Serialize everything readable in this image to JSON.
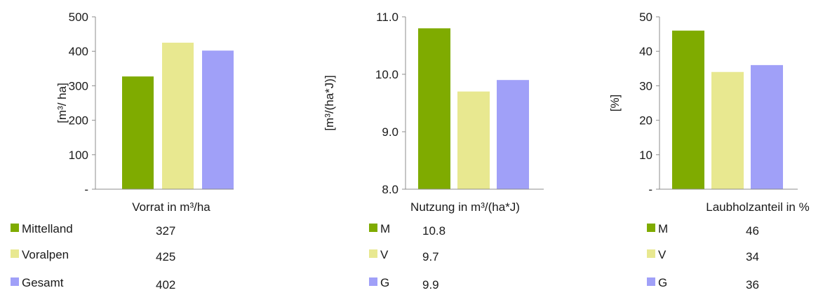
{
  "chart_data": [
    {
      "type": "bar",
      "title": "",
      "xlabel": "Vorrat in m³/ha",
      "ylabel": "[m³/ ha]",
      "ylim": [
        0,
        500
      ],
      "yticks": [
        "-",
        "100",
        "200",
        "300",
        "400",
        "500"
      ],
      "categories": [
        "Mittelland",
        "Voralpen",
        "Gesamt"
      ],
      "legend_labels": [
        "Mittelland",
        "Voralpen",
        "Gesamt"
      ],
      "values": [
        327,
        425,
        402
      ],
      "value_labels": [
        "327",
        "425",
        "402"
      ],
      "colors": [
        "#7fab00",
        "#e8e890",
        "#a0a0f8"
      ],
      "grid": false,
      "legend_position": "bottom"
    },
    {
      "type": "bar",
      "title": "",
      "xlabel": "Nutzung in m³/(ha*J)",
      "ylabel": "[m³/(ha*J)]",
      "ylim": [
        8.0,
        11.0
      ],
      "yticks": [
        "8.0",
        "9.0",
        "10.0",
        "11.0"
      ],
      "categories": [
        "M",
        "V",
        "G"
      ],
      "legend_labels": [
        "M",
        "V",
        "G"
      ],
      "values": [
        10.8,
        9.7,
        9.9
      ],
      "value_labels": [
        "10.8",
        "9.7",
        "9.9"
      ],
      "colors": [
        "#7fab00",
        "#e8e890",
        "#a0a0f8"
      ],
      "grid": false,
      "legend_position": "bottom"
    },
    {
      "type": "bar",
      "title": "",
      "xlabel": "Laubholzanteil in %",
      "ylabel": "[%]",
      "ylim": [
        0,
        50
      ],
      "yticks": [
        "-",
        "10",
        "20",
        "30",
        "40",
        "50"
      ],
      "categories": [
        "M",
        "V",
        "G"
      ],
      "legend_labels": [
        "M",
        "V",
        "G"
      ],
      "values": [
        46,
        34,
        36
      ],
      "value_labels": [
        "46",
        "34",
        "36"
      ],
      "colors": [
        "#7fab00",
        "#e8e890",
        "#a0a0f8"
      ],
      "grid": false,
      "legend_position": "bottom"
    }
  ]
}
